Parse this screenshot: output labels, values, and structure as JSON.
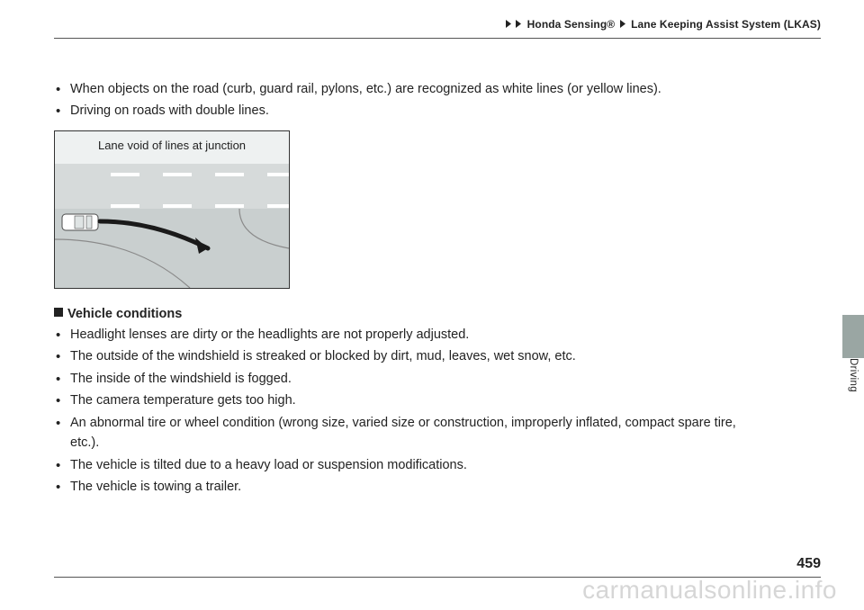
{
  "breadcrumb": {
    "seg1": "Honda Sensing®",
    "seg2": "Lane Keeping Assist System (LKAS)"
  },
  "top_bullets": [
    "When objects on the road (curb, guard rail, pylons, etc.) are recognized as white lines (or yellow lines).",
    "Driving on roads with double lines."
  ],
  "diagram": {
    "caption": "Lane void of lines at junction",
    "colors": {
      "sky": "#eef1f1",
      "road": "#c9cfcf",
      "road_far": "#d6dada",
      "lane_mark": "#ffffff",
      "car_body": "#ffffff",
      "car_outline": "#4c4c4c",
      "arrow": "#1a1a1a",
      "junction_line": "#8a8a8a"
    },
    "lane_marks_y": [
      46,
      48,
      81,
      83
    ],
    "dash_x": [
      62,
      120,
      178,
      236
    ],
    "dash_w": 32
  },
  "section_heading": "Vehicle conditions",
  "vehicle_bullets": [
    "Headlight lenses are dirty or the headlights are not properly adjusted.",
    "The outside of the windshield is streaked or blocked by dirt, mud, leaves, wet snow, etc.",
    "The inside of the windshield is fogged.",
    "The camera temperature gets too high.",
    "An abnormal tire or wheel condition (wrong size, varied size or construction, improperly inflated, compact spare tire, etc.).",
    "The vehicle is tilted due to a heavy load or suspension modifications.",
    "The vehicle is towing a trailer."
  ],
  "side_label": "Driving",
  "page_number": "459",
  "watermark": "carmanualsonline.info"
}
